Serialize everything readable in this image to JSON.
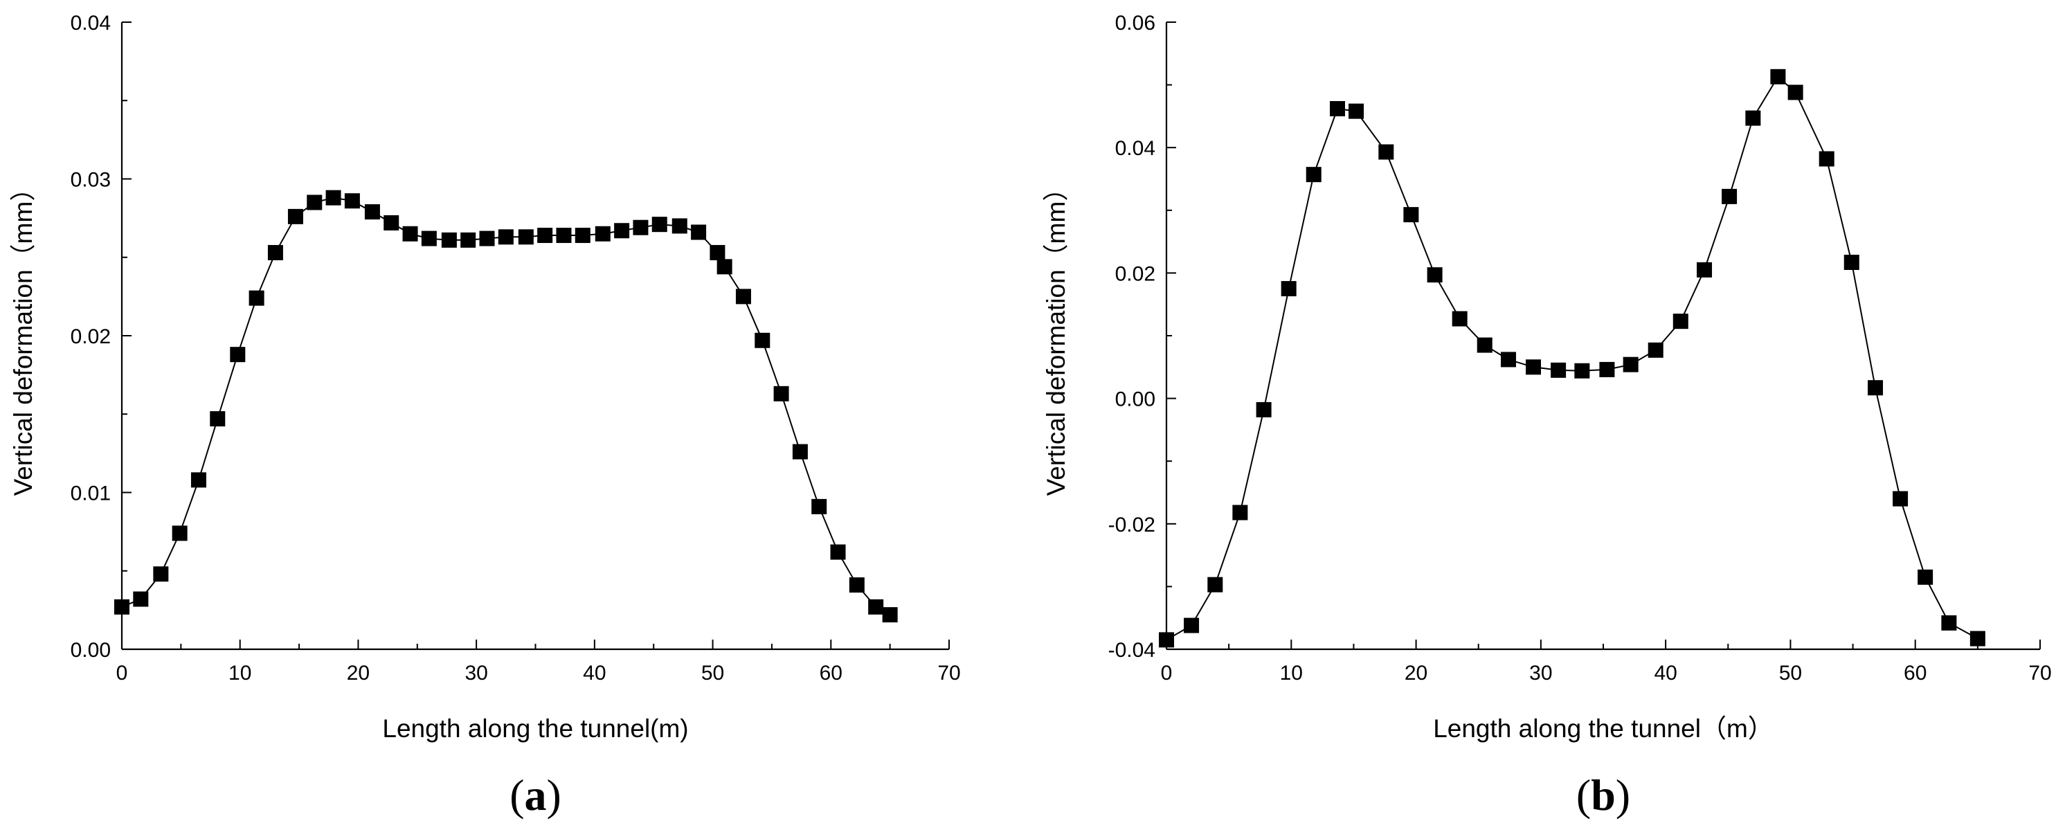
{
  "chart_data": [
    {
      "type": "line",
      "panel_label": "a",
      "xlabel": "Length along the tunnel(m)",
      "ylabel": "Vertical deformation（mm）",
      "xlim": [
        0,
        70
      ],
      "ylim": [
        0.0,
        0.04
      ],
      "xticks": [
        0,
        10,
        20,
        30,
        40,
        50,
        60,
        70
      ],
      "yticks": [
        0.0,
        0.01,
        0.02,
        0.03,
        0.04
      ],
      "xtick_labels": [
        "0",
        "10",
        "20",
        "30",
        "40",
        "50",
        "60",
        "70"
      ],
      "ytick_labels": [
        "0.00",
        "0.01",
        "0.02",
        "0.03",
        "0.04"
      ],
      "grid": false,
      "marker": "square",
      "series": [
        {
          "name": "Vertical deformation",
          "x": [
            0,
            1.6,
            3.3,
            4.9,
            6.5,
            8.1,
            9.8,
            11.4,
            13.0,
            14.7,
            16.3,
            17.9,
            19.5,
            21.2,
            22.8,
            24.4,
            26.0,
            27.7,
            29.3,
            30.9,
            32.5,
            34.2,
            35.8,
            37.4,
            39.0,
            40.7,
            42.3,
            43.9,
            45.5,
            47.2,
            48.8,
            50.4,
            51.0,
            52.6,
            54.2,
            55.8,
            57.4,
            59.0,
            60.6,
            62.2,
            63.8,
            65.0
          ],
          "y": [
            0.0027,
            0.0032,
            0.0048,
            0.0074,
            0.0108,
            0.0147,
            0.0188,
            0.0224,
            0.0253,
            0.0276,
            0.0285,
            0.0288,
            0.0286,
            0.0279,
            0.0272,
            0.0265,
            0.0262,
            0.0261,
            0.0261,
            0.0262,
            0.0263,
            0.0263,
            0.0264,
            0.0264,
            0.0264,
            0.0265,
            0.0267,
            0.0269,
            0.0271,
            0.027,
            0.0266,
            0.0253,
            0.0244,
            0.0225,
            0.0197,
            0.0163,
            0.0126,
            0.0091,
            0.0062,
            0.0041,
            0.0027,
            0.0022
          ]
        }
      ]
    },
    {
      "type": "line",
      "panel_label": "b",
      "xlabel": "Length along the tunnel（m）",
      "ylabel": "Vertical deformation（mm）",
      "xlim": [
        0,
        70
      ],
      "ylim": [
        -0.04,
        0.06
      ],
      "xticks": [
        0,
        10,
        20,
        30,
        40,
        50,
        60,
        70
      ],
      "yticks": [
        -0.04,
        -0.02,
        0.0,
        0.02,
        0.04,
        0.06
      ],
      "xtick_labels": [
        "0",
        "10",
        "20",
        "30",
        "40",
        "50",
        "60",
        "70"
      ],
      "ytick_labels": [
        "-0.04",
        "-0.02",
        "0.00",
        "0.02",
        "0.04",
        "0.06"
      ],
      "grid": false,
      "marker": "square",
      "series": [
        {
          "name": "Vertical deformation",
          "x": [
            0,
            2.0,
            3.9,
            5.9,
            7.8,
            9.8,
            11.8,
            13.7,
            15.2,
            17.6,
            19.6,
            21.5,
            23.5,
            25.5,
            27.4,
            29.4,
            31.4,
            33.3,
            35.3,
            37.2,
            39.2,
            41.2,
            43.1,
            45.1,
            47.0,
            49.0,
            50.4,
            52.9,
            54.9,
            56.8,
            58.8,
            60.8,
            62.7,
            65.0
          ],
          "y": [
            -0.0385,
            -0.0362,
            -0.0297,
            -0.0182,
            -0.0018,
            0.0175,
            0.0357,
            0.0462,
            0.0458,
            0.0393,
            0.0293,
            0.0197,
            0.0127,
            0.0085,
            0.0062,
            0.005,
            0.0045,
            0.0044,
            0.0046,
            0.0054,
            0.0077,
            0.0123,
            0.0205,
            0.0322,
            0.0447,
            0.0513,
            0.0488,
            0.0382,
            0.0217,
            0.0017,
            -0.016,
            -0.0285,
            -0.0358,
            -0.0383
          ]
        }
      ]
    }
  ]
}
